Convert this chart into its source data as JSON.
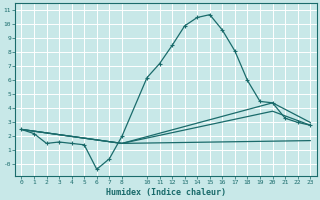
{
  "xlabel": "Humidex (Indice chaleur)",
  "bg_color": "#c8e8e8",
  "line_color": "#1a6b6b",
  "grid_color": "#ffffff",
  "xlim": [
    -0.5,
    23.5
  ],
  "ylim": [
    -0.8,
    11.5
  ],
  "xticks": [
    0,
    1,
    2,
    3,
    4,
    5,
    6,
    7,
    8,
    10,
    11,
    12,
    13,
    14,
    15,
    16,
    17,
    18,
    19,
    20,
    21,
    22,
    23
  ],
  "yticks": [
    0,
    1,
    2,
    3,
    4,
    5,
    6,
    7,
    8,
    9,
    10,
    11
  ],
  "line1_x": [
    0,
    1,
    2,
    3,
    4,
    5,
    6,
    7,
    8,
    10,
    11,
    12,
    13,
    14,
    15,
    16,
    17,
    18,
    19,
    20,
    21,
    22,
    23
  ],
  "line1_y": [
    2.5,
    2.2,
    1.5,
    1.6,
    1.5,
    1.4,
    -0.35,
    0.4,
    2.0,
    6.2,
    7.2,
    8.5,
    9.9,
    10.5,
    10.7,
    9.6,
    8.1,
    6.0,
    4.5,
    4.4,
    3.3,
    3.0,
    2.8
  ],
  "line2_x": [
    0,
    8,
    23
  ],
  "line2_y": [
    2.5,
    1.5,
    1.7
  ],
  "line3_x": [
    0,
    8,
    20,
    23
  ],
  "line3_y": [
    2.5,
    1.5,
    4.4,
    3.0
  ],
  "line4_x": [
    0,
    8,
    20,
    23
  ],
  "line4_y": [
    2.5,
    1.5,
    3.8,
    2.8
  ]
}
